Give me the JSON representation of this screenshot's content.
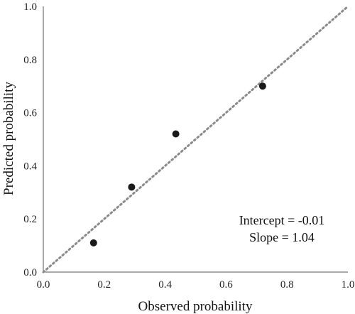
{
  "chart_data": {
    "type": "scatter",
    "title": "",
    "xlabel": "Observed probability",
    "ylabel": "Predicted probability",
    "xlim": [
      0.0,
      1.0
    ],
    "ylim": [
      0.0,
      1.0
    ],
    "x_ticks": [
      "0.0",
      "0.2",
      "0.4",
      "0.6",
      "0.8",
      "1.0"
    ],
    "y_ticks": [
      "0.0",
      "0.2",
      "0.4",
      "0.6",
      "0.8",
      "1.0"
    ],
    "grid": false,
    "series": [
      {
        "points": [
          {
            "x": 0.165,
            "y": 0.11
          },
          {
            "x": 0.29,
            "y": 0.32
          },
          {
            "x": 0.435,
            "y": 0.52
          },
          {
            "x": 0.72,
            "y": 0.7
          }
        ],
        "color": "#1a1a1a"
      }
    ],
    "reference_line": {
      "style": "dotted",
      "color": "#8a8a8a",
      "from": [
        0,
        0
      ],
      "to": [
        1,
        1
      ]
    },
    "annotations": [
      "Intercept = -0.01",
      "Slope = 1.04"
    ]
  }
}
